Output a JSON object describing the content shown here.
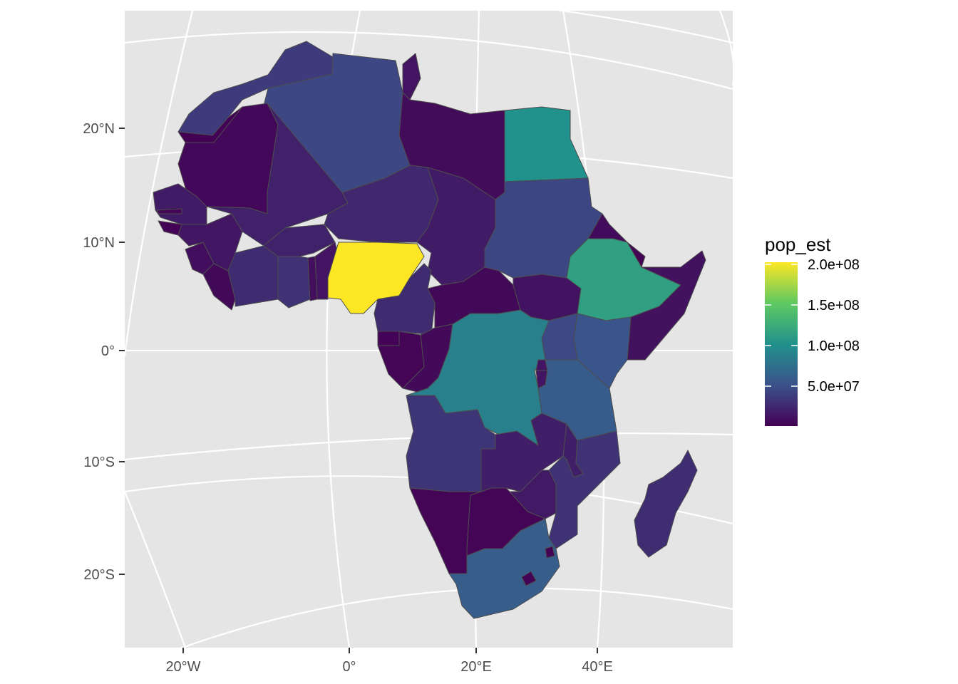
{
  "chart_data": {
    "type": "choropleth",
    "title": "",
    "fill_variable": "pop_est",
    "colour_scale": "viridis",
    "colour_stops": [
      "#440154",
      "#3b528b",
      "#21918c",
      "#5ec962",
      "#fde725"
    ],
    "panel_background": "#e5e5e5",
    "legend": {
      "title": "pop_est",
      "placement": "right",
      "range": [
        0,
        200000000
      ],
      "breaks": [
        200000000,
        150000000,
        100000000,
        50000000
      ],
      "break_labels": [
        "2.0e+08",
        "1.5e+08",
        "1.0e+08",
        "5.0e+07"
      ]
    },
    "y_axis": {
      "ticks": [
        20,
        10,
        0,
        -10,
        -20
      ],
      "tick_labels": [
        "20°N",
        "10°N",
        "0°",
        "10°S",
        "20°S"
      ]
    },
    "x_axis": {
      "ticks": [
        -20,
        0,
        20,
        40
      ],
      "tick_labels": [
        "20°W",
        "0°",
        "20°E",
        "40°E"
      ]
    },
    "regions": [
      {
        "id": "morocco",
        "pop_est": 36000000
      },
      {
        "id": "western-sahara",
        "pop_est": 600000
      },
      {
        "id": "algeria",
        "pop_est": 43000000
      },
      {
        "id": "tunisia",
        "pop_est": 12000000
      },
      {
        "id": "libya",
        "pop_est": 6800000
      },
      {
        "id": "egypt",
        "pop_est": 100000000
      },
      {
        "id": "mauritania",
        "pop_est": 4500000
      },
      {
        "id": "mali",
        "pop_est": 19700000
      },
      {
        "id": "niger",
        "pop_est": 23300000
      },
      {
        "id": "chad",
        "pop_est": 15900000
      },
      {
        "id": "sudan",
        "pop_est": 42800000
      },
      {
        "id": "eritrea",
        "pop_est": 6100000
      },
      {
        "id": "senegal",
        "pop_est": 16300000
      },
      {
        "id": "gambia",
        "pop_est": 2300000
      },
      {
        "id": "guinea-bissau",
        "pop_est": 1900000
      },
      {
        "id": "guinea",
        "pop_est": 12800000
      },
      {
        "id": "sierra-leone",
        "pop_est": 7800000
      },
      {
        "id": "liberia",
        "pop_est": 4900000
      },
      {
        "id": "cote-divoire",
        "pop_est": 25700000
      },
      {
        "id": "burkina-faso",
        "pop_est": 20300000
      },
      {
        "id": "ghana",
        "pop_est": 30400000
      },
      {
        "id": "togo",
        "pop_est": 8100000
      },
      {
        "id": "benin",
        "pop_est": 11800000
      },
      {
        "id": "nigeria",
        "pop_est": 200900000
      },
      {
        "id": "cameroon",
        "pop_est": 25900000
      },
      {
        "id": "central-african-republic",
        "pop_est": 4700000
      },
      {
        "id": "south-sudan",
        "pop_est": 11100000
      },
      {
        "id": "ethiopia",
        "pop_est": 112100000
      },
      {
        "id": "djibouti",
        "pop_est": 970000
      },
      {
        "id": "somalia",
        "pop_est": 10200000
      },
      {
        "id": "kenya",
        "pop_est": 52600000
      },
      {
        "id": "uganda",
        "pop_est": 44300000
      },
      {
        "id": "equatorial-guinea",
        "pop_est": 1400000
      },
      {
        "id": "gabon",
        "pop_est": 2200000
      },
      {
        "id": "republic-of-congo",
        "pop_est": 5400000
      },
      {
        "id": "dr-congo",
        "pop_est": 86800000
      },
      {
        "id": "rwanda",
        "pop_est": 12600000
      },
      {
        "id": "burundi",
        "pop_est": 11500000
      },
      {
        "id": "tanzania",
        "pop_est": 58000000
      },
      {
        "id": "angola",
        "pop_est": 31800000
      },
      {
        "id": "zambia",
        "pop_est": 17900000
      },
      {
        "id": "malawi",
        "pop_est": 18600000
      },
      {
        "id": "mozambique",
        "pop_est": 30400000
      },
      {
        "id": "zimbabwe",
        "pop_est": 14600000
      },
      {
        "id": "namibia",
        "pop_est": 2500000
      },
      {
        "id": "botswana",
        "pop_est": 2300000
      },
      {
        "id": "south-africa",
        "pop_est": 58600000
      },
      {
        "id": "lesotho",
        "pop_est": 2100000
      },
      {
        "id": "eswatini",
        "pop_est": 1100000
      },
      {
        "id": "madagascar",
        "pop_est": 26900000
      }
    ]
  }
}
